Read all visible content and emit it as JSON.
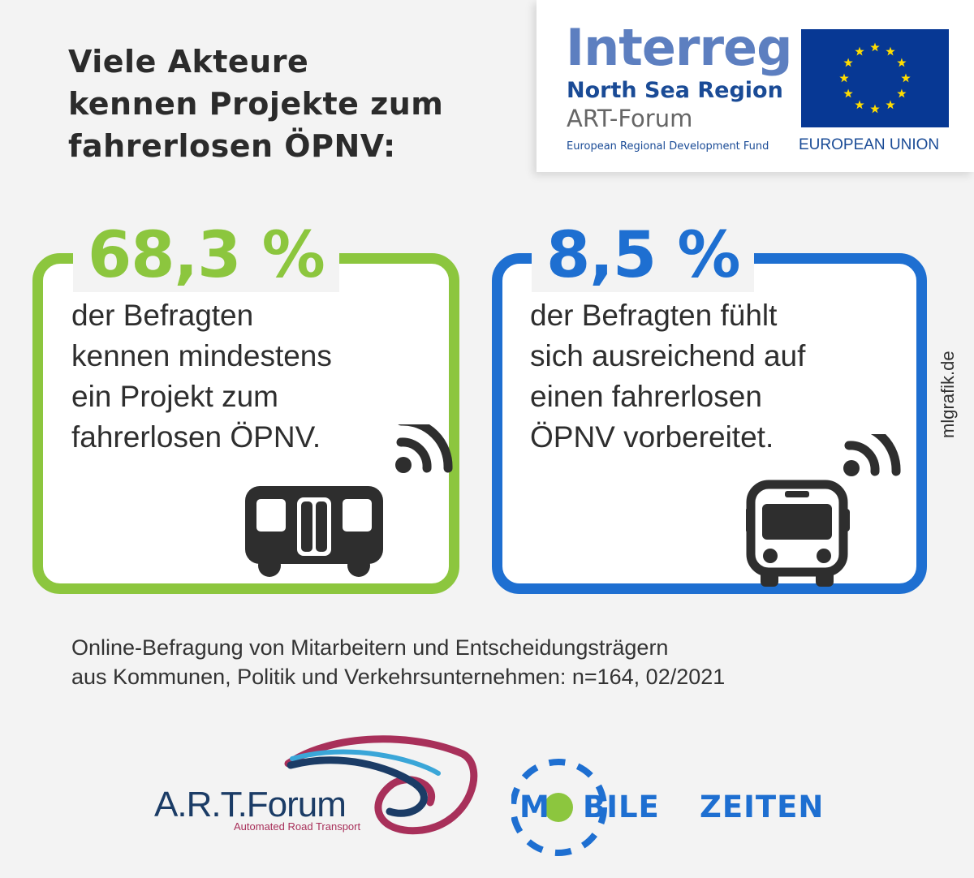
{
  "headline": [
    "Viele Akteure",
    "kennen Projekte zum",
    "fahrerlosen ÖPNV:"
  ],
  "interreg": {
    "wordmark": "Interreg",
    "region": "North Sea Region",
    "project": "ART-Forum",
    "fund": "European Regional Development Fund",
    "eu_label": "EUROPEAN UNION"
  },
  "stats": [
    {
      "value": "68,3 %",
      "lines": [
        "der Befragten",
        "kennen mindestens",
        "ein Projekt zum",
        "fahrerlosen ÖPNV."
      ],
      "color": "#8cc63e",
      "icon": "bus-side-wifi-icon"
    },
    {
      "value": "8,5 %",
      "lines": [
        "der Befragten fühlt",
        "sich ausreichend auf",
        "einen fahrerlosen",
        "ÖPNV vorbereitet."
      ],
      "color": "#1e6fd1",
      "icon": "bus-front-wifi-icon"
    }
  ],
  "credit": "mlgrafik.de",
  "source": [
    "Online-Befragung von Mitarbeitern und Entscheidungsträgern",
    "aus Kommunen, Politik und Verkehrsunternehmen: n=164, 02/2021"
  ],
  "logos": {
    "art_forum": {
      "wordmark": "A.R.T.Forum",
      "subtitle": "Automated Road Transport"
    },
    "mobile_zeiten": {
      "left": "M",
      "middle": "BILE",
      "right": "ZEITEN"
    }
  },
  "colors": {
    "green": "#8cc63e",
    "blue": "#1e6fd1",
    "eu_blue": "#073894",
    "eu_yellow": "#ffdd00"
  }
}
